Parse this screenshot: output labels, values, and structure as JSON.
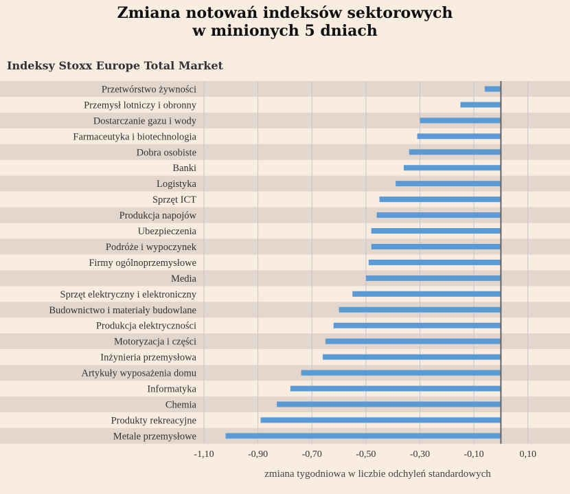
{
  "chart_data": {
    "type": "bar",
    "orientation": "horizontal",
    "title_lines": [
      "Zmiana notowań indeksów sektorowych",
      "w minionych 5 dniach"
    ],
    "subtitle": "Indeksy Stoxx Europe Total Market",
    "xlabel": "zmiana tygodniowa w liczbie odchyleń standardowych",
    "xlim": [
      -1.1,
      0.2
    ],
    "xticks": [
      -1.1,
      -0.9,
      -0.7,
      -0.5,
      -0.3,
      -0.1,
      0.1
    ],
    "xtick_labels": [
      "-1,10",
      "-0,90",
      "-0,70",
      "-0,50",
      "-0,30",
      "-0,10",
      "0,10"
    ],
    "grid": true,
    "categories": [
      "Przetwórstwo żywności",
      "Przemysł lotniczy i obronny",
      "Dostarczanie gazu i wody",
      "Farmaceutyka i biotechnologia",
      "Dobra osobiste",
      "Banki",
      "Logistyka",
      "Sprzęt ICT",
      "Produkcja napojów",
      "Ubezpieczenia",
      "Podróże i wypoczynek",
      "Firmy ogólnoprzemysłowe",
      "Media",
      "Sprzęt elektryczny i elektroniczny",
      "Budownictwo i materiały budowlane",
      "Produkcja elektryczności",
      "Motoryzacja i części",
      "Inżynieria przemysłowa",
      "Artykuły wyposażenia domu",
      "Informatyka",
      "Chemia",
      "Produkty rekreacyjne",
      "Metale przemysłowe"
    ],
    "values": [
      -0.06,
      -0.15,
      -0.3,
      -0.31,
      -0.34,
      -0.36,
      -0.39,
      -0.45,
      -0.46,
      -0.48,
      -0.48,
      -0.49,
      -0.5,
      -0.55,
      -0.6,
      -0.62,
      -0.65,
      -0.66,
      -0.74,
      -0.78,
      -0.83,
      -0.89,
      -1.02
    ],
    "colors": {
      "bar": "#5b9bd5",
      "stripe": "#e3d6cc",
      "background": "#f9ece1",
      "grid": "#c9c3c8",
      "zero_line": "#666666"
    }
  }
}
